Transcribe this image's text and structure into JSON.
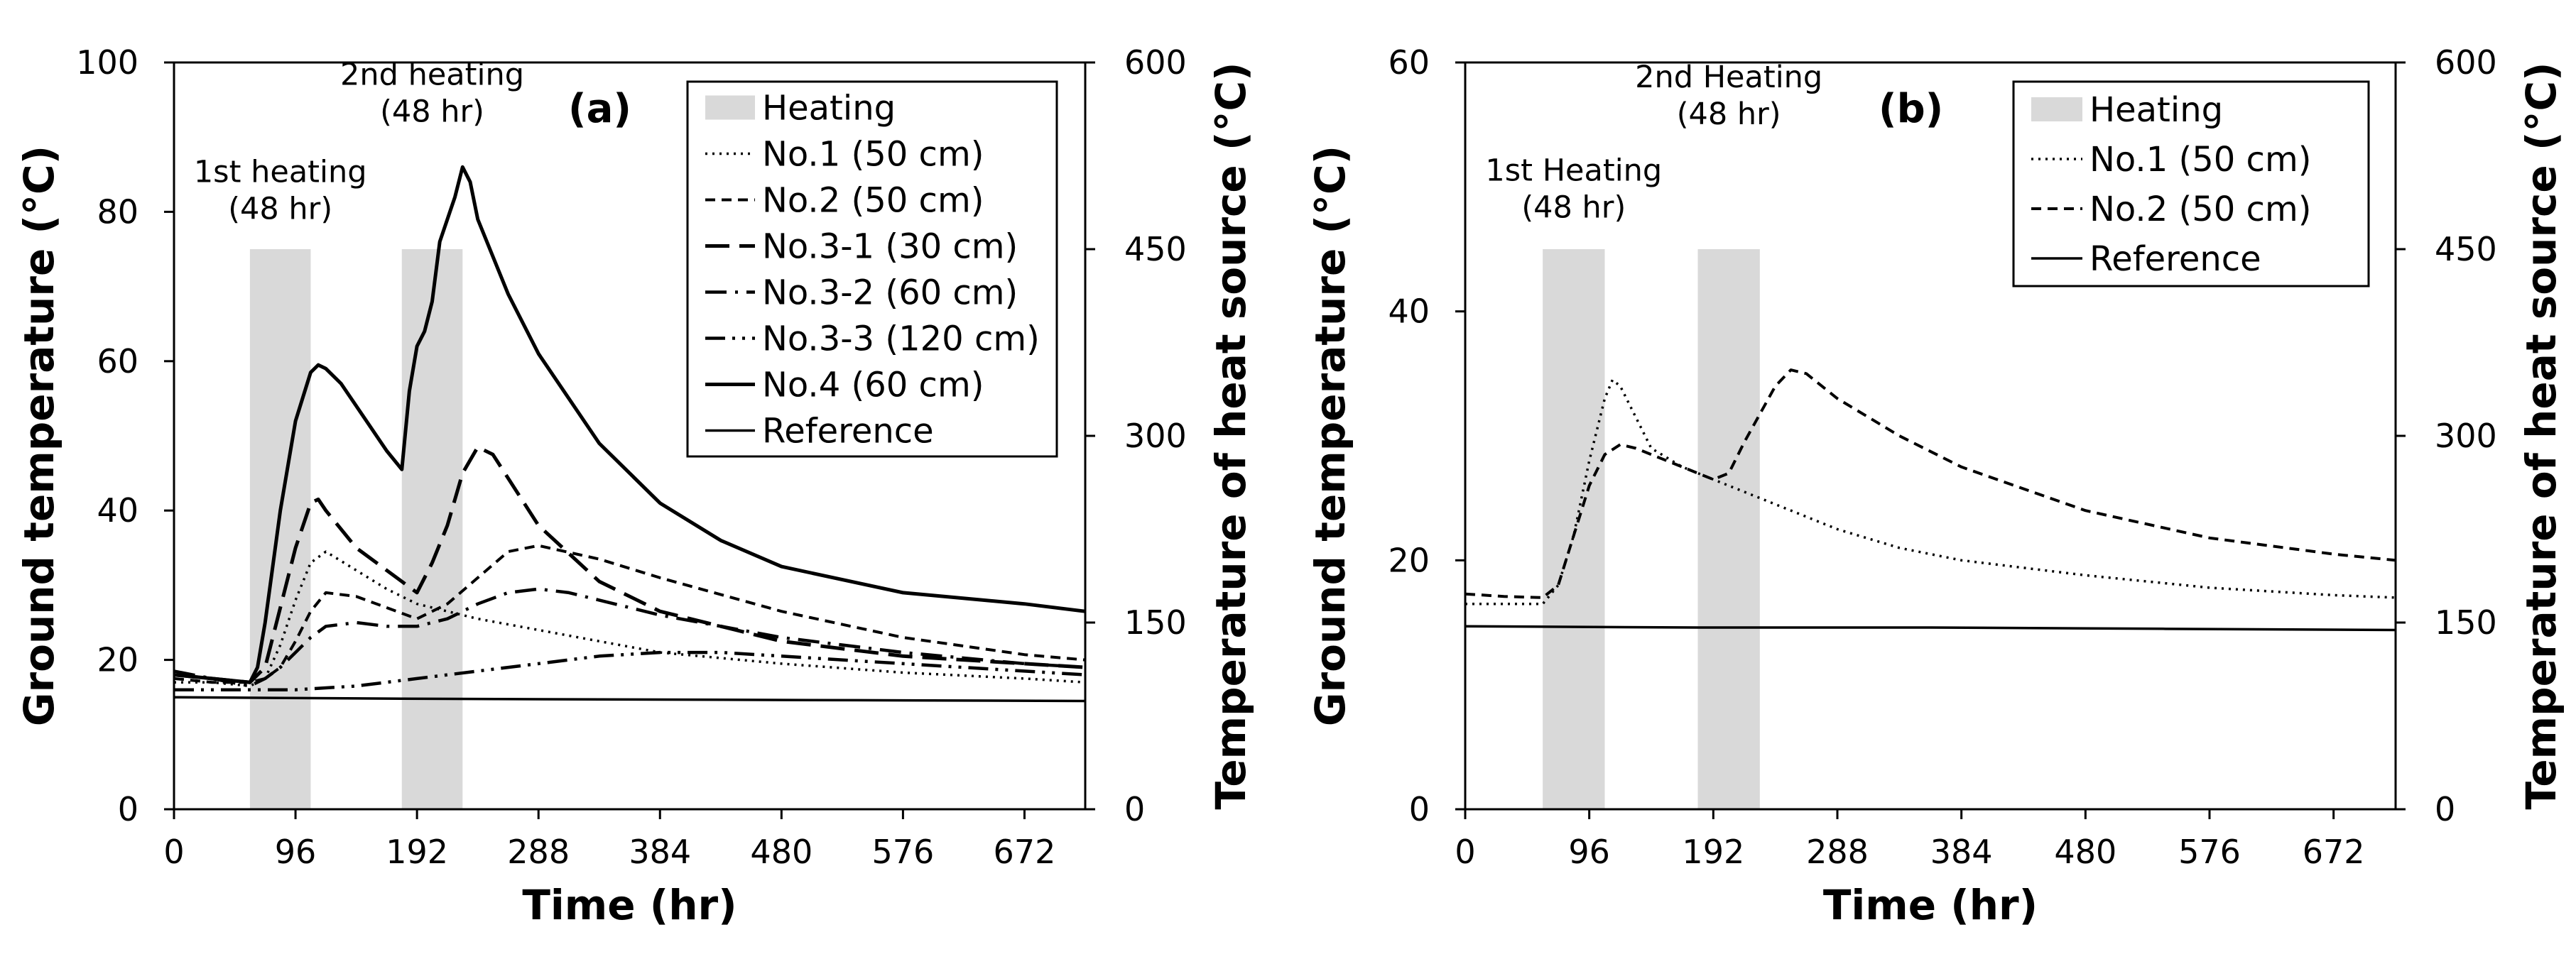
{
  "chart_data": [
    {
      "type": "line",
      "panel_label": "(a)",
      "xlabel": "Time (hr)",
      "ylabel": "Ground temperature (°C)",
      "y2label": "Temperature of heat source (°C)",
      "xlim": [
        0,
        720
      ],
      "ylim": [
        0,
        100
      ],
      "y2lim": [
        0,
        600
      ],
      "xticks": [
        0,
        96,
        192,
        288,
        384,
        480,
        576,
        672
      ],
      "yticks": [
        0,
        20,
        40,
        60,
        80,
        100
      ],
      "y2ticks": [
        0,
        150,
        300,
        450,
        600
      ],
      "legend_position": "top-right",
      "heating_label": "Heating",
      "heating_periods": [
        [
          60,
          108
        ],
        [
          180,
          228
        ]
      ],
      "annotations": [
        {
          "lines": [
            "1st heating",
            "(48 hr)"
          ],
          "x": 84,
          "y": 84
        },
        {
          "lines": [
            "2nd heating",
            "(48 hr)"
          ],
          "x": 204,
          "y": 97
        }
      ],
      "series": [
        {
          "name": "No.1 (50 cm)",
          "dash": "dot",
          "stroke": 3.5,
          "x": [
            0,
            30,
            60,
            72,
            84,
            96,
            108,
            120,
            144,
            168,
            192,
            216,
            240,
            288,
            336,
            384,
            480,
            576,
            672,
            720
          ],
          "y": [
            17,
            17,
            16.5,
            17.5,
            22,
            28,
            33,
            34.5,
            32,
            29.5,
            27.5,
            26.5,
            25.5,
            24,
            22.5,
            21,
            19.5,
            18.3,
            17.5,
            17
          ]
        },
        {
          "name": "No.2 (50 cm)",
          "dash": "dash",
          "stroke": 4,
          "x": [
            0,
            30,
            60,
            72,
            84,
            96,
            108,
            120,
            144,
            168,
            192,
            216,
            240,
            264,
            288,
            336,
            384,
            480,
            576,
            672,
            720
          ],
          "y": [
            17.5,
            17,
            17,
            17.5,
            19,
            22.5,
            26.5,
            29,
            28.5,
            27,
            25.5,
            27.5,
            31,
            34.5,
            35.3,
            33.5,
            31,
            26.5,
            23,
            20.7,
            20
          ]
        },
        {
          "name": "No.3-1 (30 cm)",
          "dash": "longdash",
          "stroke": 5,
          "x": [
            0,
            30,
            60,
            72,
            84,
            96,
            108,
            114,
            120,
            144,
            168,
            192,
            204,
            216,
            228,
            240,
            252,
            288,
            336,
            384,
            480,
            576,
            672,
            720
          ],
          "y": [
            18,
            17.5,
            17,
            19,
            27,
            35,
            41,
            41.5,
            40,
            35,
            32,
            29,
            33,
            38,
            45,
            48.5,
            47.5,
            38,
            30.5,
            26.5,
            22.5,
            20.5,
            19.5,
            19
          ]
        },
        {
          "name": "No.3-2 (60 cm)",
          "dash": "dashdot",
          "stroke": 4.5,
          "x": [
            0,
            30,
            60,
            72,
            84,
            96,
            108,
            120,
            144,
            168,
            192,
            216,
            240,
            264,
            288,
            312,
            336,
            384,
            480,
            576,
            672,
            720
          ],
          "y": [
            18.5,
            17.5,
            16.5,
            17.5,
            19,
            21,
            23,
            24.5,
            25,
            24.5,
            24.5,
            25.5,
            27.5,
            29,
            29.5,
            29,
            28,
            26,
            23,
            21,
            19.5,
            19
          ]
        },
        {
          "name": "No.3-3 (120 cm)",
          "dash": "dashdotdot",
          "stroke": 4.5,
          "x": [
            0,
            60,
            96,
            144,
            192,
            240,
            288,
            336,
            384,
            432,
            480,
            576,
            672,
            720
          ],
          "y": [
            16,
            16,
            16,
            16.5,
            17.5,
            18.5,
            19.5,
            20.5,
            21,
            21,
            20.5,
            19.5,
            18.5,
            18
          ]
        },
        {
          "name": "No.4 (60 cm)",
          "dash": "solid",
          "stroke": 5,
          "x": [
            0,
            30,
            60,
            66,
            72,
            84,
            96,
            108,
            114,
            120,
            132,
            144,
            168,
            180,
            186,
            192,
            198,
            204,
            210,
            216,
            222,
            228,
            234,
            240,
            264,
            288,
            336,
            384,
            432,
            480,
            576,
            672,
            720
          ],
          "y": [
            18,
            17.5,
            17,
            19,
            25,
            40,
            52,
            58.5,
            59.5,
            59,
            57,
            54,
            48,
            45.5,
            56,
            62,
            64,
            68,
            76,
            79,
            82,
            86,
            84,
            79,
            69,
            61,
            49,
            41,
            36,
            32.5,
            29,
            27.5,
            26.5
          ]
        },
        {
          "name": "Reference",
          "dash": "solid",
          "stroke": 3.5,
          "x": [
            0,
            180,
            360,
            540,
            720
          ],
          "y": [
            15,
            14.8,
            14.7,
            14.6,
            14.5
          ]
        }
      ]
    },
    {
      "type": "line",
      "panel_label": "(b)",
      "xlabel": "Time (hr)",
      "ylabel": "Ground temperature (°C)",
      "y2label": "Temperature of heat source (°C)",
      "xlim": [
        0,
        720
      ],
      "ylim": [
        0,
        60
      ],
      "y2lim": [
        0,
        600
      ],
      "xticks": [
        0,
        96,
        192,
        288,
        384,
        480,
        576,
        672
      ],
      "yticks": [
        0,
        20,
        40,
        60
      ],
      "y2ticks": [
        0,
        150,
        300,
        450,
        600
      ],
      "legend_position": "top-right",
      "heating_label": "Heating",
      "heating_periods": [
        [
          60,
          108
        ],
        [
          180,
          228
        ]
      ],
      "annotations": [
        {
          "lines": [
            "1st Heating",
            "(48 hr)"
          ],
          "x": 84,
          "y": 50.5
        },
        {
          "lines": [
            "2nd Heating",
            "(48 hr)"
          ],
          "x": 204,
          "y": 58
        }
      ],
      "series": [
        {
          "name": "No.1 (50 cm)",
          "dash": "dot",
          "stroke": 3.5,
          "x": [
            0,
            30,
            60,
            72,
            84,
            96,
            108,
            114,
            120,
            132,
            144,
            168,
            192,
            216,
            240,
            288,
            336,
            384,
            480,
            576,
            672,
            720
          ],
          "y": [
            16.5,
            16.5,
            16.5,
            18,
            22,
            28,
            33,
            34.5,
            34,
            31.5,
            29,
            27.5,
            26.5,
            25.5,
            24.5,
            22.5,
            21,
            20,
            18.8,
            17.8,
            17.2,
            17
          ]
        },
        {
          "name": "No.2 (50 cm)",
          "dash": "dash",
          "stroke": 4,
          "x": [
            0,
            30,
            60,
            72,
            84,
            96,
            108,
            120,
            132,
            144,
            168,
            192,
            204,
            216,
            240,
            252,
            264,
            288,
            336,
            384,
            480,
            576,
            672,
            720
          ],
          "y": [
            17.3,
            17.1,
            17,
            18,
            22,
            26,
            28.5,
            29.3,
            29,
            28.5,
            27.5,
            26.5,
            27,
            29.5,
            34,
            35.3,
            35,
            33,
            30,
            27.5,
            24,
            21.8,
            20.5,
            20
          ]
        },
        {
          "name": "Reference",
          "dash": "solid",
          "stroke": 3.5,
          "x": [
            0,
            180,
            360,
            540,
            720
          ],
          "y": [
            14.7,
            14.6,
            14.6,
            14.5,
            14.4
          ]
        }
      ]
    }
  ]
}
